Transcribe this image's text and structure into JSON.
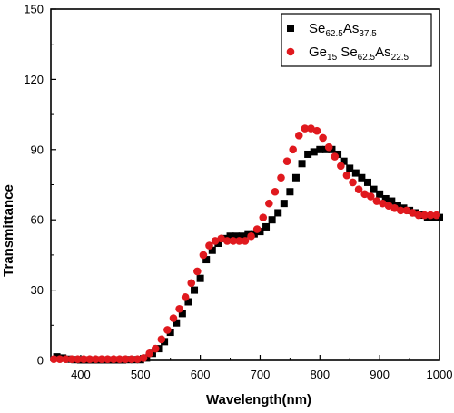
{
  "chart_data": {
    "type": "scatter",
    "xlabel": "Wavelength(nm)",
    "ylabel": "Transmittance",
    "xlim": [
      350,
      1000
    ],
    "ylim": [
      0,
      150
    ],
    "xticks": [
      400,
      500,
      600,
      700,
      800,
      900,
      1000
    ],
    "yticks": [
      0,
      30,
      60,
      90,
      120,
      150
    ],
    "grid": false,
    "legend_position": "top-right",
    "series": [
      {
        "name": "Se62.5As37.5",
        "legend": [
          {
            "text": "Se",
            "sub": false
          },
          {
            "text": "62.5",
            "sub": true
          },
          {
            "text": "As",
            "sub": false
          },
          {
            "text": "37.5",
            "sub": true
          }
        ],
        "marker": "square",
        "color": "#000000",
        "x": [
          360,
          370,
          380,
          390,
          400,
          410,
          420,
          430,
          440,
          450,
          460,
          470,
          480,
          490,
          500,
          510,
          520,
          530,
          540,
          550,
          560,
          570,
          580,
          590,
          600,
          610,
          620,
          630,
          640,
          650,
          660,
          670,
          680,
          690,
          700,
          710,
          720,
          730,
          740,
          750,
          760,
          770,
          780,
          790,
          800,
          810,
          820,
          830,
          840,
          850,
          860,
          870,
          880,
          890,
          900,
          910,
          920,
          930,
          940,
          950,
          960,
          970,
          980,
          990,
          1000
        ],
        "y": [
          1.5,
          1,
          0.5,
          0.3,
          0.2,
          0.2,
          0.2,
          0.2,
          0.2,
          0.2,
          0.2,
          0.2,
          0.3,
          0.3,
          0.3,
          1,
          3,
          5,
          8,
          12,
          16,
          20,
          25,
          30,
          35,
          43,
          47,
          50,
          52,
          53,
          53,
          53,
          54,
          54,
          55,
          57,
          60,
          63,
          67,
          72,
          78,
          84,
          88,
          89,
          90,
          90,
          90,
          88,
          85,
          82,
          80,
          78,
          76,
          73,
          71,
          69,
          68,
          66,
          65,
          64,
          63,
          62,
          61,
          61,
          61
        ]
      },
      {
        "name": "Ge15 Se62.5As22.5",
        "legend": [
          {
            "text": "Ge",
            "sub": false
          },
          {
            "text": "15",
            "sub": true
          },
          {
            "text": " Se",
            "sub": false
          },
          {
            "text": "62.5",
            "sub": true
          },
          {
            "text": "As",
            "sub": false
          },
          {
            "text": "22.5",
            "sub": true
          }
        ],
        "marker": "circle",
        "color": "#e0191e",
        "x": [
          355,
          365,
          375,
          385,
          395,
          405,
          415,
          425,
          435,
          445,
          455,
          465,
          475,
          485,
          495,
          505,
          515,
          525,
          535,
          545,
          555,
          565,
          575,
          585,
          595,
          605,
          615,
          625,
          635,
          645,
          655,
          665,
          675,
          685,
          695,
          705,
          715,
          725,
          735,
          745,
          755,
          765,
          775,
          785,
          795,
          805,
          815,
          825,
          835,
          845,
          855,
          865,
          875,
          885,
          895,
          905,
          915,
          925,
          935,
          945,
          955,
          965,
          975,
          985,
          995
        ],
        "y": [
          0.5,
          0.5,
          0.5,
          0.5,
          0.5,
          0.5,
          0.5,
          0.5,
          0.5,
          0.5,
          0.5,
          0.5,
          0.5,
          0.5,
          0.5,
          1,
          3,
          5,
          9,
          13,
          18,
          22,
          27,
          33,
          38,
          45,
          49,
          51,
          52,
          51,
          51,
          51,
          51,
          53,
          56,
          61,
          67,
          72,
          78,
          85,
          90,
          96,
          99,
          99,
          98,
          95,
          91,
          87,
          83,
          79,
          76,
          73,
          71,
          70,
          68,
          67,
          66,
          65,
          64,
          64,
          63,
          62,
          62,
          62,
          62
        ]
      }
    ]
  }
}
